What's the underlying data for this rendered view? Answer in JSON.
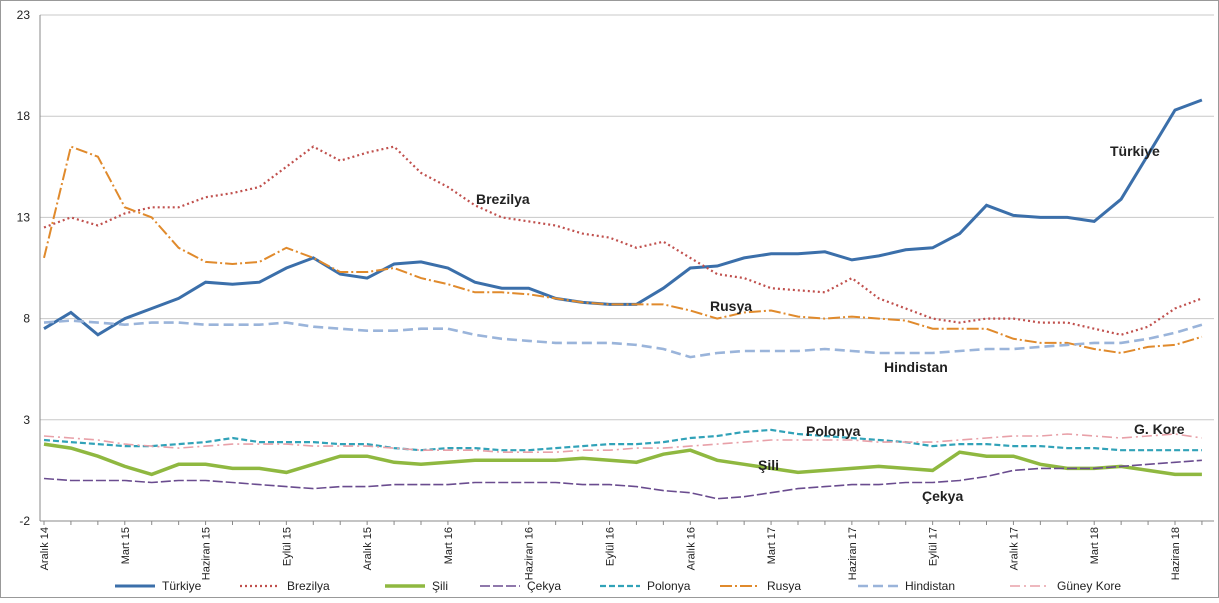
{
  "chart_data": {
    "type": "line",
    "categories": [
      "Aralık 14",
      null,
      null,
      "Mart 15",
      null,
      null,
      "Haziran 15",
      null,
      null,
      "Eylül 15",
      null,
      null,
      "Aralık 15",
      null,
      null,
      "Mart 16",
      null,
      null,
      "Haziran 16",
      null,
      null,
      "Eylül 16",
      null,
      null,
      "Aralık 16",
      null,
      null,
      "Mart 17",
      null,
      null,
      "Haziran 17",
      null,
      null,
      "Eylül 17",
      null,
      null,
      "Aralık 17",
      null,
      null,
      "Mart 18",
      null,
      null,
      "Haziran 18",
      null
    ],
    "ylim": [
      -2,
      23
    ],
    "yticks": [
      -2,
      3,
      8,
      13,
      18,
      23
    ],
    "grid": true,
    "series": [
      {
        "name": "Türkiye",
        "color": "#3b6faa",
        "values": [
          7.5,
          8.3,
          7.2,
          8.0,
          8.5,
          9.0,
          9.8,
          9.7,
          9.8,
          10.5,
          11.0,
          10.2,
          10.0,
          10.7,
          10.8,
          10.5,
          9.8,
          9.5,
          9.5,
          9.0,
          8.8,
          8.7,
          8.7,
          9.5,
          10.5,
          10.6,
          11.0,
          11.2,
          11.2,
          11.3,
          10.9,
          11.1,
          11.4,
          11.5,
          12.2,
          13.6,
          13.1,
          13.0,
          13.0,
          12.8,
          13.9,
          16.1,
          18.3,
          18.8
        ]
      },
      {
        "name": "Brezilya",
        "color": "#c0504d",
        "values": [
          12.5,
          13.0,
          12.6,
          13.2,
          13.5,
          13.5,
          14.0,
          14.2,
          14.5,
          15.5,
          16.5,
          15.8,
          16.2,
          16.5,
          15.2,
          14.5,
          13.6,
          13.0,
          12.8,
          12.6,
          12.2,
          12.0,
          11.5,
          11.8,
          11.0,
          10.2,
          10.0,
          9.5,
          9.4,
          9.3,
          10.0,
          9.0,
          8.5,
          8.0,
          7.8,
          8.0,
          8.0,
          7.8,
          7.8,
          7.5,
          7.2,
          7.6,
          8.5,
          9.0
        ]
      },
      {
        "name": "Şili",
        "color": "#8fb840",
        "values": [
          1.8,
          1.6,
          1.2,
          0.7,
          0.3,
          0.8,
          0.8,
          0.6,
          0.6,
          0.4,
          0.8,
          1.2,
          1.2,
          0.9,
          0.8,
          0.9,
          1.0,
          1.0,
          1.0,
          1.0,
          1.1,
          1.0,
          0.9,
          1.3,
          1.5,
          1.0,
          0.8,
          0.6,
          0.4,
          0.5,
          0.6,
          0.7,
          0.6,
          0.5,
          1.4,
          1.2,
          1.2,
          0.8,
          0.6,
          0.6,
          0.7,
          0.5,
          0.3,
          0.3
        ]
      },
      {
        "name": "Çekya",
        "color": "#6a4c8f",
        "values": [
          0.1,
          0.0,
          0.0,
          0.0,
          -0.1,
          0.0,
          0.0,
          -0.1,
          -0.2,
          -0.3,
          -0.4,
          -0.3,
          -0.3,
          -0.2,
          -0.2,
          -0.2,
          -0.1,
          -0.1,
          -0.1,
          -0.1,
          -0.2,
          -0.2,
          -0.3,
          -0.5,
          -0.6,
          -0.9,
          -0.8,
          -0.6,
          -0.4,
          -0.3,
          -0.2,
          -0.2,
          -0.1,
          -0.1,
          0.0,
          0.2,
          0.5,
          0.6,
          0.6,
          0.6,
          0.7,
          0.8,
          0.9,
          1.0
        ]
      },
      {
        "name": "Polonya",
        "color": "#31a2b8",
        "values": [
          2.0,
          1.9,
          1.8,
          1.7,
          1.7,
          1.8,
          1.9,
          2.1,
          1.9,
          1.9,
          1.9,
          1.8,
          1.8,
          1.6,
          1.5,
          1.6,
          1.6,
          1.5,
          1.5,
          1.6,
          1.7,
          1.8,
          1.8,
          1.9,
          2.1,
          2.2,
          2.4,
          2.5,
          2.3,
          2.2,
          2.1,
          2.0,
          1.9,
          1.7,
          1.8,
          1.8,
          1.7,
          1.7,
          1.6,
          1.6,
          1.5,
          1.5,
          1.5,
          1.5
        ]
      },
      {
        "name": "Rusya",
        "color": "#e08a2c",
        "values": [
          11.0,
          16.5,
          16.0,
          13.5,
          13.0,
          11.5,
          10.8,
          10.7,
          10.8,
          11.5,
          11.0,
          10.3,
          10.3,
          10.5,
          10.0,
          9.7,
          9.3,
          9.3,
          9.2,
          9.0,
          8.8,
          8.7,
          8.7,
          8.7,
          8.4,
          8.0,
          8.3,
          8.4,
          8.1,
          8.0,
          8.1,
          8.0,
          7.9,
          7.5,
          7.5,
          7.5,
          7.0,
          6.8,
          6.8,
          6.5,
          6.3,
          6.6,
          6.7,
          7.1
        ]
      },
      {
        "name": "Hindistan",
        "color": "#9ab4da",
        "values": [
          7.8,
          7.9,
          7.8,
          7.7,
          7.8,
          7.8,
          7.7,
          7.7,
          7.7,
          7.8,
          7.6,
          7.5,
          7.4,
          7.4,
          7.5,
          7.5,
          7.2,
          7.0,
          6.9,
          6.8,
          6.8,
          6.8,
          6.7,
          6.5,
          6.1,
          6.3,
          6.4,
          6.4,
          6.4,
          6.5,
          6.4,
          6.3,
          6.3,
          6.3,
          6.4,
          6.5,
          6.5,
          6.6,
          6.7,
          6.8,
          6.8,
          7.0,
          7.3,
          7.7
        ]
      },
      {
        "name": "Güney Kore",
        "color": "#e8a0a8",
        "values": [
          2.2,
          2.1,
          2.0,
          1.8,
          1.7,
          1.6,
          1.7,
          1.8,
          1.8,
          1.8,
          1.7,
          1.7,
          1.7,
          1.6,
          1.5,
          1.5,
          1.5,
          1.4,
          1.4,
          1.4,
          1.5,
          1.5,
          1.6,
          1.6,
          1.7,
          1.8,
          1.9,
          2.0,
          2.0,
          2.0,
          2.0,
          1.9,
          1.9,
          1.9,
          2.0,
          2.1,
          2.2,
          2.2,
          2.3,
          2.2,
          2.1,
          2.2,
          2.3,
          2.1
        ]
      }
    ],
    "annotations": [
      "Türkiye",
      "Brezilya",
      "Rusya",
      "Hindistan",
      "Polonya",
      "G. Kore",
      "Şili",
      "Çekya"
    ]
  }
}
